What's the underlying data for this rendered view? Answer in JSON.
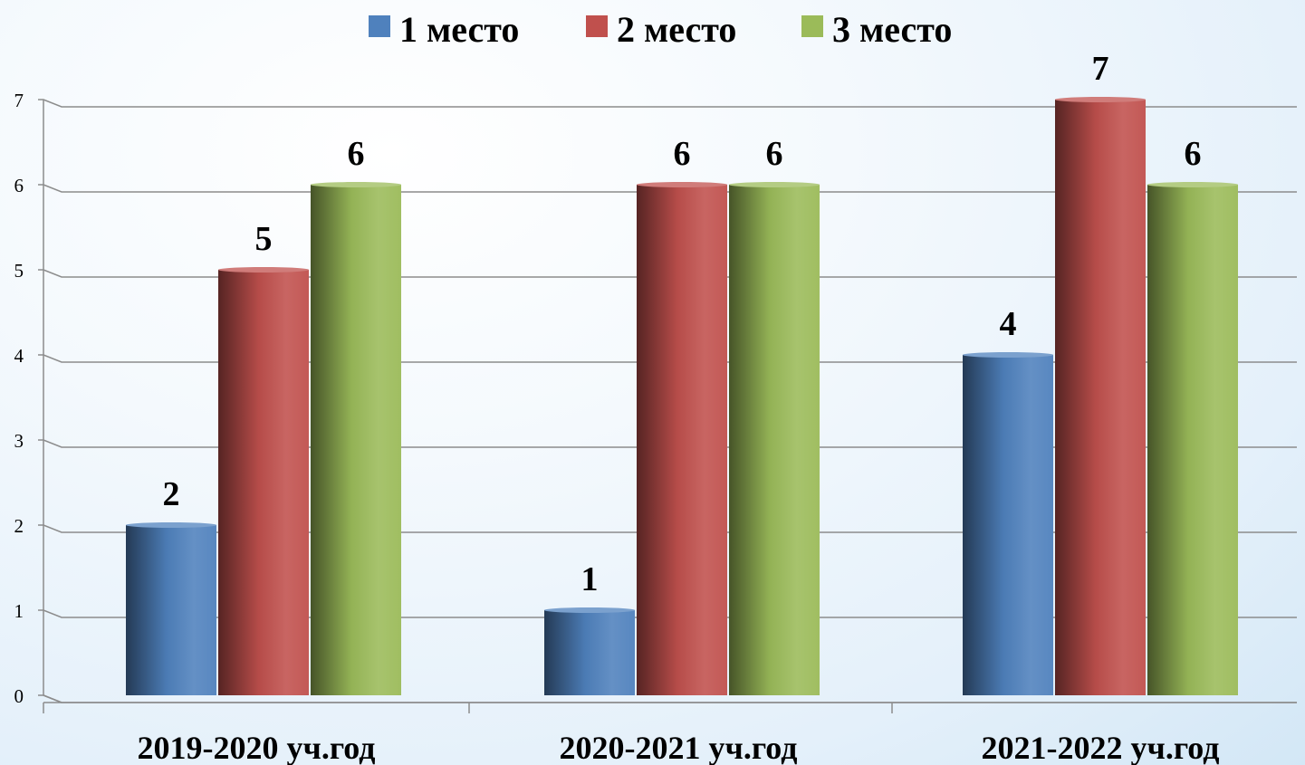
{
  "chart_data": {
    "type": "bar",
    "categories": [
      "2019-2020 уч.год",
      "2020-2021 уч.год",
      "2021-2022 уч.год"
    ],
    "series": [
      {
        "name": "1 место",
        "values": [
          2,
          1,
          4
        ],
        "color": "#4f81bd"
      },
      {
        "name": "2 место",
        "values": [
          5,
          6,
          7
        ],
        "color": "#c0504d"
      },
      {
        "name": "3 место",
        "values": [
          6,
          6,
          6
        ],
        "color": "#9bbb59"
      }
    ],
    "y_ticks": [
      "0",
      "1",
      "2",
      "3",
      "4",
      "5",
      "6",
      "7"
    ],
    "ylim": [
      0,
      7
    ],
    "grid": true,
    "legend_position": "top-center",
    "data_labels": true
  }
}
